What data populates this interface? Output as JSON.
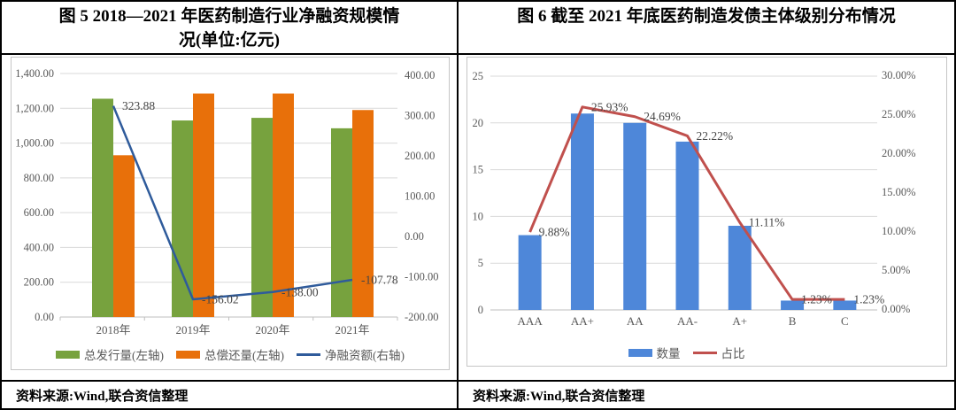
{
  "panels": [
    {
      "title_line1": "图 5  2018—2021 年医药制造行业净融资规模情",
      "title_line2": "况(单位:亿元)",
      "source": "资料来源:Wind,联合资信整理"
    },
    {
      "title": "图 6  截至 2021 年底医药制造发债主体级别分布情况",
      "source": "资料来源:Wind,联合资信整理"
    }
  ],
  "colors": {
    "issuance_green": "#77A23E",
    "repayment_orange": "#E8700A",
    "net_financing_blue": "#2F5B9B",
    "count_blue": "#4E87D9",
    "share_red": "#C0504D",
    "gridline": "#d9d9d9",
    "axis_text": "#595959",
    "table_border": "#000000"
  },
  "chart_data": [
    {
      "type": "bar",
      "subtype": "combo-bar-line",
      "title": "图 5 2018—2021 年医药制造行业净融资规模情况(单位:亿元)",
      "xlabel": "",
      "ylabel": "",
      "grid": true,
      "legend_position": "bottom",
      "categories": [
        "2018年",
        "2019年",
        "2020年",
        "2021年"
      ],
      "series": [
        {
          "name": "总发行量(左轴)",
          "type": "bar",
          "axis": "left",
          "color": "#77A23E",
          "values": [
            1255,
            1130,
            1145,
            1085
          ]
        },
        {
          "name": "总偿还量(左轴)",
          "type": "bar",
          "axis": "left",
          "color": "#E8700A",
          "values": [
            930,
            1285,
            1285,
            1190
          ]
        },
        {
          "name": "净融资额(右轴)",
          "type": "line",
          "axis": "right",
          "color": "#2F5B9B",
          "values": [
            323.88,
            -156.02,
            -138.0,
            -107.78
          ],
          "labels": [
            "323.88",
            "-156.02",
            "-138.00",
            "-107.78"
          ]
        }
      ],
      "left_axis": {
        "min": 0,
        "max": 1400,
        "ticks": [
          "1,400.00",
          "1,200.00",
          "1,000.00",
          "800.00",
          "600.00",
          "400.00",
          "200.00",
          "0.00"
        ]
      },
      "right_axis": {
        "min": -200,
        "max": 400,
        "ticks": [
          "400.00",
          "300.00",
          "200.00",
          "100.00",
          "0.00",
          "-100.00",
          "-200.00"
        ]
      }
    },
    {
      "type": "bar",
      "subtype": "combo-bar-line",
      "title": "图 6 截至 2021 年底医药制造发债主体级别分布情况",
      "xlabel": "",
      "ylabel": "",
      "grid": true,
      "legend_position": "bottom",
      "categories": [
        "AAA",
        "AA+",
        "AA",
        "AA-",
        "A+",
        "B",
        "C"
      ],
      "series": [
        {
          "name": "数量",
          "type": "bar",
          "axis": "left",
          "color": "#4E87D9",
          "values": [
            8,
            21,
            20,
            18,
            9,
            1,
            1
          ]
        },
        {
          "name": "占比",
          "type": "line",
          "axis": "right",
          "color": "#C0504D",
          "values": [
            9.88,
            25.93,
            24.69,
            22.22,
            11.11,
            1.23,
            1.23
          ],
          "labels": [
            "9.88%",
            "25.93%",
            "24.69%",
            "22.22%",
            "11.11%",
            "1.23%",
            "1.23%"
          ]
        }
      ],
      "left_axis": {
        "min": 0,
        "max": 25,
        "ticks": [
          "25",
          "20",
          "15",
          "10",
          "5",
          "0"
        ]
      },
      "right_axis": {
        "min": 0,
        "max": 30,
        "ticks": [
          "30.00%",
          "25.00%",
          "20.00%",
          "15.00%",
          "10.00%",
          "5.00%",
          "0.00%"
        ]
      }
    }
  ]
}
